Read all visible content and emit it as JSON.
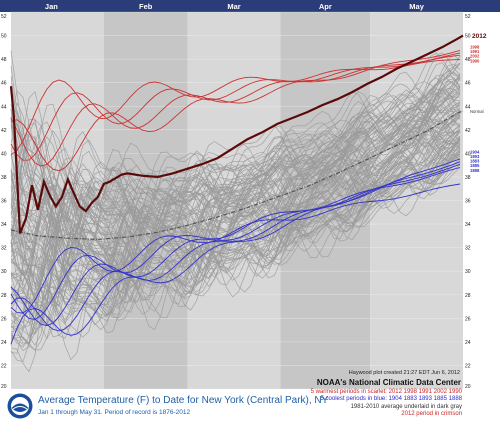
{
  "chart_data": {
    "type": "line",
    "title": "Average Temperature (F) to Date for New York (Central Park), NY",
    "subtitle": "Jan 1 through May 31. Period of record is 1876-2012",
    "months": [
      "Jan",
      "Feb",
      "Mar",
      "Apr",
      "May"
    ],
    "y_ticks": [
      20,
      22,
      24,
      26,
      28,
      30,
      32,
      34,
      36,
      38,
      40,
      42,
      44,
      46,
      48,
      50,
      52
    ],
    "ylim": [
      20,
      52
    ],
    "xlim": [
      1,
      152
    ],
    "x_unit": "day of year",
    "grid": true,
    "highlight": {
      "name": "2012",
      "x": [
        1,
        2,
        3,
        4,
        6,
        8,
        10,
        12,
        14,
        16,
        18,
        20,
        22,
        24,
        26,
        28,
        30,
        32,
        34,
        36,
        38,
        40,
        45,
        50,
        55,
        60,
        65,
        70,
        75,
        80,
        85,
        90,
        95,
        100,
        105,
        110,
        115,
        120,
        125,
        130,
        135,
        140,
        145,
        150,
        152
      ],
      "values": [
        45.7,
        43,
        38,
        33.2,
        34.5,
        37.3,
        35.2,
        37.6,
        36.4,
        35.5,
        36.3,
        37.8,
        36.6,
        35.5,
        35.1,
        35.8,
        36.3,
        37.4,
        37.6,
        37.9,
        38.2,
        38.3,
        38.1,
        38.0,
        38.3,
        38.7,
        39.1,
        39.6,
        40.4,
        41.2,
        41.8,
        42.5,
        43.0,
        43.5,
        44.1,
        44.6,
        45.2,
        45.9,
        46.5,
        47.2,
        47.8,
        48.4,
        49.0,
        49.7,
        50.0
      ]
    },
    "normal": {
      "name": "Normal",
      "x": [
        1,
        10,
        20,
        30,
        40,
        50,
        60,
        70,
        80,
        90,
        100,
        110,
        120,
        130,
        140,
        150,
        152
      ],
      "values": [
        33.5,
        33.0,
        32.8,
        32.7,
        32.9,
        33.3,
        33.9,
        34.6,
        35.4,
        36.3,
        37.2,
        38.3,
        39.5,
        40.7,
        41.9,
        43.4,
        43.6
      ]
    },
    "warmest": [
      {
        "name": "2012"
      },
      {
        "name": "1998",
        "end": 48.8
      },
      {
        "name": "1991",
        "end": 48.5
      },
      {
        "name": "2002",
        "end": 48.3
      },
      {
        "name": "1990",
        "end": 48.0
      }
    ],
    "coolest": [
      {
        "name": "1904",
        "end": 39.7
      },
      {
        "name": "1883",
        "end": 39.4
      },
      {
        "name": "1893",
        "end": 39.1
      },
      {
        "name": "1885",
        "end": 38.8
      },
      {
        "name": "1888",
        "end": 37.4
      }
    ],
    "right_labels": {
      "highlight": "2012",
      "warm": [
        "1998",
        "1991",
        "2002",
        "1990"
      ],
      "normal": "Normal",
      "cool": [
        "1904",
        "1893",
        "1883",
        "1885",
        "1888"
      ]
    },
    "colors": {
      "highlight": "#5a0a0a",
      "warm": "#cc3333",
      "cool": "#3333cc",
      "normal": "#555555",
      "history": "#9a9a9a",
      "bg_light": "#d8d8d8",
      "bg_dark": "#c6c6c6",
      "header": "#2b3d78"
    }
  },
  "footer": {
    "title": "Average Temperature (F) to Date for New York (Central Park), NY",
    "subtitle": "Jan 1 through May 31. Period of record is 1876-2012",
    "credit": "Haywood plot created 21:27 EDT Jun 6, 2012",
    "agency": "NOAA's National Climatic Data Center",
    "note_warm": "5 warmest periods in scarlet: 2012 1998 1991 2002 1990",
    "note_cool": "5 coolest periods in blue: 1904 1883 1893 1885 1888",
    "note_normal": "1981-2010 average underlaid in dark gray",
    "note_highlight": "2012 period in crimson"
  }
}
